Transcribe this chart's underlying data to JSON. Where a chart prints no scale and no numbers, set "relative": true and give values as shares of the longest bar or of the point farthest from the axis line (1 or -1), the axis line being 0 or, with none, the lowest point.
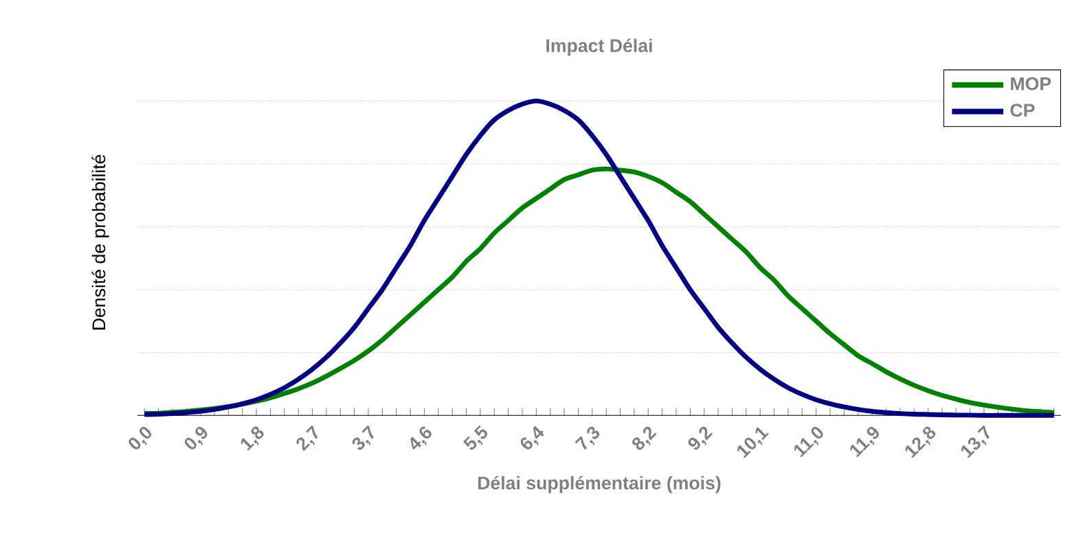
{
  "chart_data": {
    "type": "line",
    "title": "Impact Délai",
    "xlabel": "Délai supplémentaire (mois)",
    "ylabel": "Densité de probabilité",
    "relative": true,
    "grid": "y",
    "legend": "top right",
    "marker": "none",
    "line_style": "solid",
    "categories": [
      "0,0",
      null,
      null,
      null,
      "0,9",
      null,
      null,
      null,
      "1,8",
      null,
      null,
      null,
      "2,7",
      null,
      null,
      null,
      "3,7",
      null,
      null,
      null,
      "4,6",
      null,
      null,
      null,
      "5,5",
      null,
      null,
      null,
      "6,4",
      null,
      null,
      null,
      "7,3",
      null,
      null,
      null,
      "8,2",
      null,
      null,
      null,
      "9,2",
      null,
      null,
      null,
      "10,1",
      null,
      null,
      null,
      "11,0",
      null,
      null,
      null,
      "11,9",
      null,
      null,
      null,
      "12,8",
      null,
      null,
      null,
      "13,7",
      null,
      null,
      null,
      null,
      null
    ],
    "series": [
      {
        "name": "MOP",
        "color": "#008000",
        "values": [
          0.006,
          0.007,
          0.01,
          0.013,
          0.017,
          0.022,
          0.028,
          0.036,
          0.045,
          0.056,
          0.07,
          0.085,
          0.103,
          0.125,
          0.149,
          0.175,
          0.205,
          0.24,
          0.28,
          0.32,
          0.36,
          0.4,
          0.44,
          0.49,
          0.53,
          0.58,
          0.62,
          0.66,
          0.69,
          0.72,
          0.75,
          0.765,
          0.78,
          0.784,
          0.78,
          0.774,
          0.76,
          0.74,
          0.71,
          0.68,
          0.64,
          0.6,
          0.56,
          0.52,
          0.47,
          0.43,
          0.38,
          0.34,
          0.3,
          0.26,
          0.225,
          0.19,
          0.165,
          0.139,
          0.116,
          0.096,
          0.079,
          0.064,
          0.052,
          0.041,
          0.033,
          0.026,
          0.02,
          0.015,
          0.012,
          0.009
        ]
      },
      {
        "name": "CP",
        "color": "#000080",
        "values": [
          0.003,
          0.004,
          0.006,
          0.009,
          0.013,
          0.019,
          0.027,
          0.037,
          0.05,
          0.067,
          0.088,
          0.115,
          0.147,
          0.185,
          0.23,
          0.28,
          0.34,
          0.4,
          0.47,
          0.54,
          0.62,
          0.69,
          0.76,
          0.83,
          0.89,
          0.94,
          0.97,
          0.99,
          1.0,
          0.99,
          0.97,
          0.94,
          0.89,
          0.83,
          0.76,
          0.69,
          0.62,
          0.54,
          0.47,
          0.4,
          0.34,
          0.28,
          0.23,
          0.185,
          0.147,
          0.115,
          0.088,
          0.067,
          0.05,
          0.037,
          0.027,
          0.019,
          0.013,
          0.009,
          0.006,
          0.004,
          0.003,
          0.002,
          0.001,
          0.001,
          0,
          0,
          0,
          0,
          0,
          0
        ]
      }
    ]
  }
}
